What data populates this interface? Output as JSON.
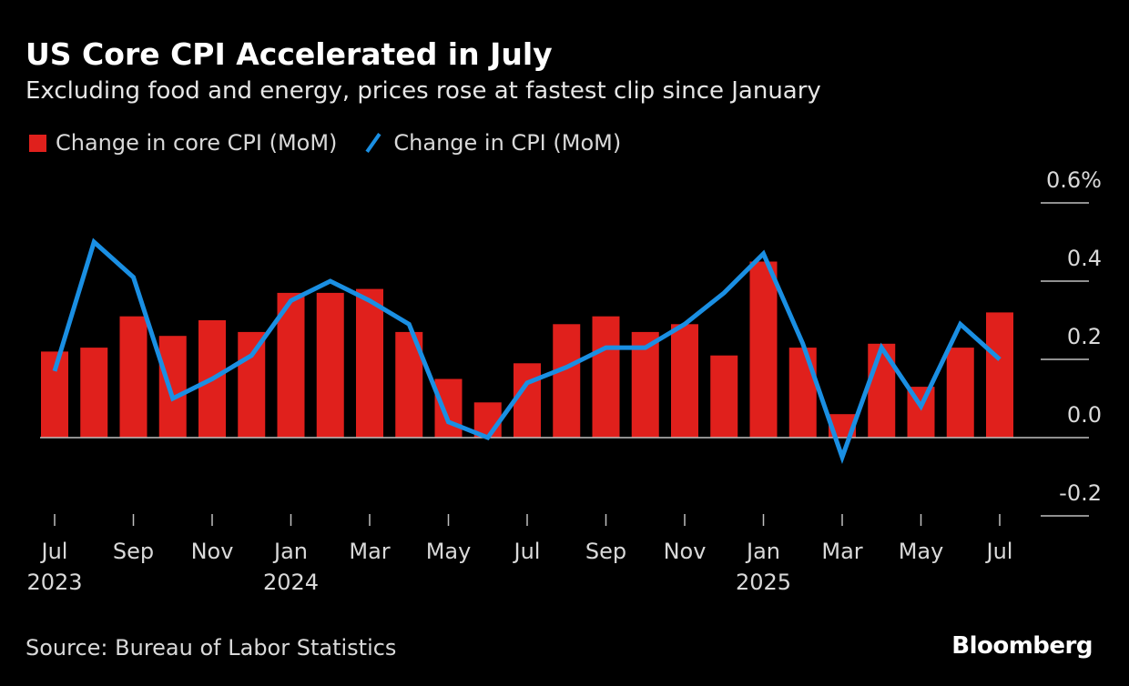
{
  "chart_data": {
    "type": "bar+line",
    "title": "US Core CPI Accelerated in July",
    "subtitle": "Excluding food and energy, prices rose at fastest clip since January",
    "x": [
      "2023-07",
      "2023-08",
      "2023-09",
      "2023-10",
      "2023-11",
      "2023-12",
      "2024-01",
      "2024-02",
      "2024-03",
      "2024-04",
      "2024-05",
      "2024-06",
      "2024-07",
      "2024-08",
      "2024-09",
      "2024-10",
      "2024-11",
      "2024-12",
      "2025-01",
      "2025-02",
      "2025-03",
      "2025-04",
      "2025-05",
      "2025-06",
      "2025-07"
    ],
    "series": [
      {
        "name": "Change in core CPI (MoM)",
        "type": "bar",
        "color": "#e0201c",
        "values": [
          0.22,
          0.23,
          0.31,
          0.26,
          0.3,
          0.27,
          0.37,
          0.37,
          0.38,
          0.27,
          0.15,
          0.09,
          0.19,
          0.29,
          0.31,
          0.27,
          0.29,
          0.21,
          0.45,
          0.23,
          0.06,
          0.24,
          0.13,
          0.23,
          0.32
        ]
      },
      {
        "name": "Change in CPI (MoM)",
        "type": "line",
        "color": "#1a8fe3",
        "values": [
          0.17,
          0.5,
          0.41,
          0.1,
          0.15,
          0.21,
          0.35,
          0.4,
          0.35,
          0.29,
          0.04,
          0.0,
          0.14,
          0.18,
          0.23,
          0.23,
          0.29,
          0.37,
          0.47,
          0.24,
          -0.05,
          0.23,
          0.08,
          0.29,
          0.2
        ]
      }
    ],
    "x_ticks": [
      {
        "index": 0,
        "label": "Jul",
        "year": "2023"
      },
      {
        "index": 2,
        "label": "Sep",
        "year": ""
      },
      {
        "index": 4,
        "label": "Nov",
        "year": ""
      },
      {
        "index": 6,
        "label": "Jan",
        "year": "2024"
      },
      {
        "index": 8,
        "label": "Mar",
        "year": ""
      },
      {
        "index": 10,
        "label": "May",
        "year": ""
      },
      {
        "index": 12,
        "label": "Jul",
        "year": ""
      },
      {
        "index": 14,
        "label": "Sep",
        "year": ""
      },
      {
        "index": 16,
        "label": "Nov",
        "year": ""
      },
      {
        "index": 18,
        "label": "Jan",
        "year": "2025"
      },
      {
        "index": 20,
        "label": "Mar",
        "year": ""
      },
      {
        "index": 22,
        "label": "May",
        "year": ""
      },
      {
        "index": 24,
        "label": "Jul",
        "year": ""
      }
    ],
    "y_ticks": [
      {
        "value": 0.6,
        "label": "0.6%"
      },
      {
        "value": 0.4,
        "label": "0.4"
      },
      {
        "value": 0.2,
        "label": "0.2"
      },
      {
        "value": 0.0,
        "label": "0.0"
      },
      {
        "value": -0.2,
        "label": "-0.2"
      }
    ],
    "ylim": [
      -0.2,
      0.6
    ],
    "y_axis_position": "right",
    "legend_position": "top-left",
    "grid": false
  },
  "source": "Source: Bureau of Labor Statistics",
  "brand": "Bloomberg"
}
